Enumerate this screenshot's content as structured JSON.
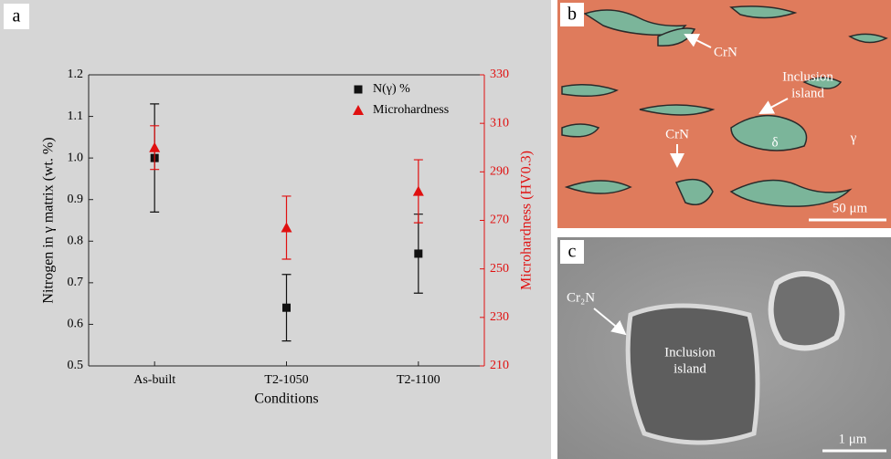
{
  "chart_data": {
    "type": "errorbar",
    "panel_label": "a",
    "x_label": "Conditions",
    "y_label": "Nitrogen in γ matrix (wt. %)",
    "y2_label": "Microhardness (HV0.3)",
    "y2_color": "#e01010",
    "categories": [
      "As-built",
      "T2-1050",
      "T2-1100"
    ],
    "series": [
      {
        "name": "N(γ) %",
        "color": "#111111",
        "marker": "square",
        "values": [
          1.0,
          0.64,
          0.77
        ],
        "errors": [
          0.13,
          0.08,
          0.095
        ]
      },
      {
        "name": "Microhardness",
        "color": "#e01010",
        "marker": "triangle",
        "axis": "y2",
        "values": [
          300,
          267,
          282
        ],
        "errors": [
          9,
          13,
          13
        ]
      }
    ],
    "ylim": [
      0.5,
      1.2
    ],
    "yticks": [
      0.5,
      0.6,
      0.7,
      0.8,
      0.9,
      {
        "value": 1,
        "label": "1.0"
      },
      1.1,
      1.2
    ],
    "y2lim": [
      210,
      330
    ],
    "y2ticks": [
      210,
      230,
      250,
      270,
      290,
      310,
      330
    ],
    "grid": false,
    "legend": "top-right"
  },
  "figure": {
    "panel_b": {
      "label": "b",
      "crn_top": "CrN",
      "inclusion_lines": [
        "Inclusion",
        "island"
      ],
      "delta": "δ",
      "gamma": "γ",
      "crn_left": "CrN",
      "scale": "50 μm"
    },
    "panel_c": {
      "label": "c",
      "cr2n": "Cr₂N",
      "inclusion_lines": [
        "Inclusion",
        "island"
      ],
      "scale": "1 μm"
    }
  }
}
